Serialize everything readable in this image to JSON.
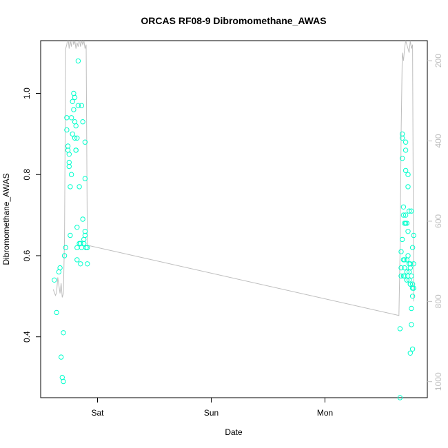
{
  "chart_data": {
    "type": "scatter",
    "title": "ORCAS RF08-9 Dibromomethane_AWAS",
    "xlabel": "Date",
    "ylabel": "Dibromomethane_AWAS",
    "x_ticks": [
      {
        "label": "Sat",
        "value": 1.0
      },
      {
        "label": "Sun",
        "value": 2.0
      },
      {
        "label": "Mon",
        "value": 3.0
      }
    ],
    "xlim": [
      0.5,
      3.9
    ],
    "ylim": [
      0.25,
      1.13
    ],
    "y_ticks": [
      0.4,
      0.6,
      0.8,
      1.0
    ],
    "y2_ticks": [
      200,
      400,
      600,
      800,
      1000
    ],
    "y2lim": [
      1040,
      150
    ],
    "grid": false,
    "colors": {
      "points": "#00ffcc",
      "line": "#bebebe",
      "axis": "#000000",
      "y2_axis": "#bebebe"
    },
    "series": [
      {
        "role": "points",
        "x": [
          0.62,
          0.64,
          0.66,
          0.67,
          0.68,
          0.69,
          0.7,
          0.7,
          0.71,
          0.72,
          0.73,
          0.73,
          0.74,
          0.74,
          0.75,
          0.75,
          0.75,
          0.76,
          0.76,
          0.77,
          0.77,
          0.78,
          0.78,
          0.79,
          0.79,
          0.8,
          0.8,
          0.8,
          0.81,
          0.81,
          0.81,
          0.82,
          0.82,
          0.82,
          0.82,
          0.83,
          0.83,
          0.84,
          0.84,
          0.85,
          0.85,
          0.85,
          0.86,
          0.86,
          0.87,
          0.87,
          0.88,
          0.88,
          0.89,
          0.89,
          0.89,
          0.89,
          0.9,
          0.9,
          0.91,
          0.91,
          3.66,
          3.66,
          3.67,
          3.67,
          3.67,
          3.68,
          3.68,
          3.68,
          3.68,
          3.69,
          3.69,
          3.69,
          3.69,
          3.7,
          3.7,
          3.7,
          3.7,
          3.71,
          3.71,
          3.71,
          3.71,
          3.71,
          3.72,
          3.72,
          3.72,
          3.72,
          3.72,
          3.73,
          3.73,
          3.73,
          3.73,
          3.74,
          3.74,
          3.74,
          3.74,
          3.75,
          3.75,
          3.75,
          3.75,
          3.75,
          3.76,
          3.76,
          3.76,
          3.76,
          3.77,
          3.77,
          3.77,
          3.77,
          3.77,
          3.78,
          3.78,
          3.78
        ],
        "y": [
          0.54,
          0.46,
          0.56,
          0.57,
          0.35,
          0.3,
          0.29,
          0.41,
          0.6,
          0.62,
          0.94,
          0.91,
          0.87,
          0.86,
          0.85,
          0.83,
          0.82,
          0.65,
          0.77,
          0.8,
          0.94,
          0.9,
          0.98,
          0.96,
          1.0,
          0.89,
          0.99,
          0.93,
          0.86,
          0.86,
          0.92,
          0.67,
          0.62,
          0.59,
          0.89,
          1.08,
          0.97,
          0.77,
          0.63,
          0.63,
          0.63,
          0.58,
          0.62,
          0.97,
          0.93,
          0.69,
          0.63,
          0.64,
          0.65,
          0.66,
          0.79,
          0.88,
          0.62,
          0.62,
          0.58,
          0.62,
          0.42,
          0.25,
          0.61,
          0.55,
          0.57,
          0.64,
          0.89,
          0.9,
          0.84,
          0.72,
          0.7,
          0.59,
          0.55,
          0.57,
          0.59,
          0.55,
          0.68,
          0.88,
          0.86,
          0.81,
          0.7,
          0.68,
          0.59,
          0.56,
          0.54,
          0.54,
          0.68,
          0.8,
          0.77,
          0.66,
          0.6,
          0.56,
          0.58,
          0.71,
          0.54,
          0.53,
          0.58,
          0.57,
          0.53,
          0.36,
          0.43,
          0.47,
          0.55,
          0.71,
          0.52,
          0.53,
          0.62,
          0.37,
          0.5,
          0.65,
          0.58,
          0.52
        ]
      },
      {
        "role": "line",
        "x": [
          0.61,
          0.63,
          0.64,
          0.65,
          0.67,
          0.68,
          0.69,
          0.7,
          0.71,
          0.72,
          0.73,
          0.74,
          0.75,
          0.76,
          0.77,
          0.78,
          0.79,
          0.8,
          0.81,
          0.82,
          0.83,
          0.84,
          0.85,
          0.86,
          0.87,
          0.88,
          0.89,
          0.9,
          0.91,
          3.65,
          3.66,
          3.67,
          3.68,
          3.69,
          3.7,
          3.71,
          3.72,
          3.73,
          3.74,
          3.75,
          3.76,
          3.77,
          3.78
        ],
        "y": [
          770,
          785,
          778,
          740,
          780,
          755,
          790,
          780,
          640,
          170,
          160,
          140,
          170,
          150,
          165,
          140,
          160,
          150,
          170,
          155,
          165,
          145,
          165,
          150,
          160,
          150,
          170,
          160,
          660,
          835,
          680,
          380,
          180,
          200,
          170,
          150,
          160,
          170,
          180,
          150,
          170,
          160,
          800
        ]
      }
    ]
  }
}
